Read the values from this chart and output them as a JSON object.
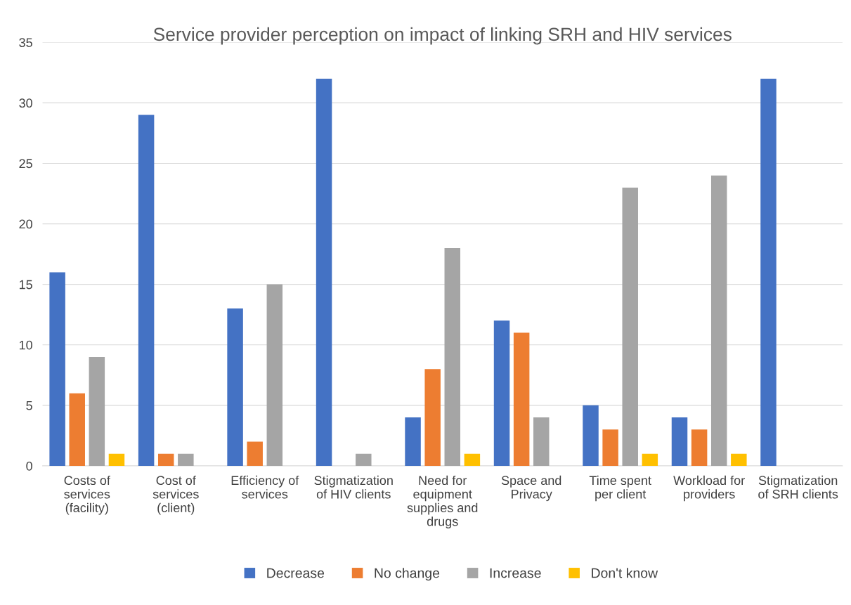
{
  "chart_data": {
    "type": "bar",
    "title": "Service provider perception on impact of linking SRH and HIV services",
    "categories": [
      "Costs of\nservices\n(facility)",
      "Cost of\nservices\n(client)",
      "Efficiency of\nservices",
      "Stigmatization\nof HIV clients",
      "Need for\nequipment\nsupplies and\ndrugs",
      "Space and\nPrivacy",
      "Time spent\nper client",
      "Workload for\nproviders",
      "Stigmatization\nof SRH clients"
    ],
    "series": [
      {
        "name": "Decrease",
        "color": "#4472c4",
        "values": [
          16,
          29,
          13,
          32,
          4,
          12,
          5,
          4,
          32
        ]
      },
      {
        "name": "No change",
        "color": "#ed7d31",
        "values": [
          6,
          1,
          2,
          null,
          8,
          11,
          3,
          3,
          null
        ]
      },
      {
        "name": "Increase",
        "color": "#a5a5a5",
        "values": [
          9,
          1,
          15,
          1,
          18,
          4,
          23,
          24,
          null
        ]
      },
      {
        "name": "Don't know",
        "color": "#ffc000",
        "values": [
          1,
          null,
          null,
          null,
          1,
          null,
          1,
          1,
          null
        ]
      }
    ],
    "ylim": [
      0,
      35
    ],
    "yticks": [
      0,
      5,
      10,
      15,
      20,
      25,
      30,
      35
    ],
    "grid": "y",
    "legend": "bottom"
  }
}
